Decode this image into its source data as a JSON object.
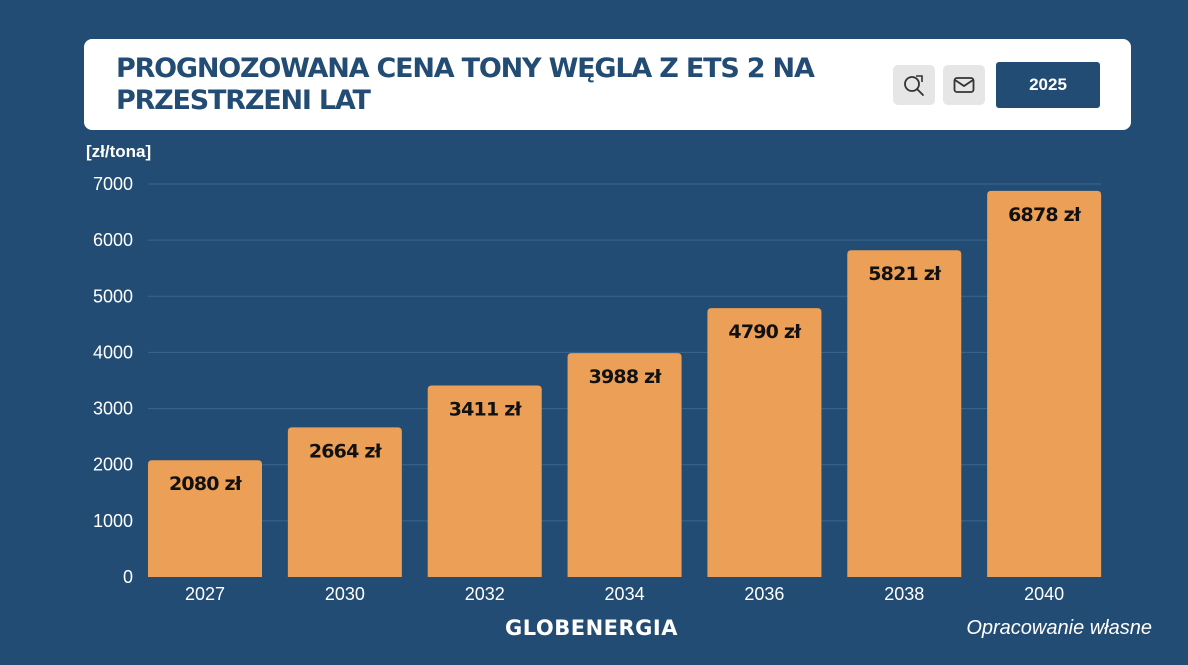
{
  "header": {
    "title": "PROGNOZOWANA CENA TONY WĘGLA Z ETS 2 NA PRZESTRZENI LAT",
    "year_button": "2025",
    "icons": [
      "zoom-icon",
      "mail-icon"
    ]
  },
  "unit_label": "[zł/tona]",
  "brand": "GLOBENERGIA",
  "source": "Opracowanie własne",
  "colors": {
    "background": "#224c73",
    "bar": "#eb9f57",
    "card": "#ffffff",
    "grid": "#3a6690"
  },
  "chart_data": {
    "type": "bar",
    "categories": [
      "2027",
      "2030",
      "2032",
      "2034",
      "2036",
      "2038",
      "2040"
    ],
    "values": [
      2080,
      2664,
      3411,
      3988,
      4790,
      5821,
      6878
    ],
    "value_labels": [
      "2080 zł",
      "2664 zł",
      "3411 zł",
      "3988 zł",
      "4790 zł",
      "5821 zł",
      "6878 zł"
    ],
    "ylabel": "[zł/tona]",
    "ylim": [
      0,
      7000
    ],
    "yticks": [
      0,
      1000,
      2000,
      3000,
      4000,
      5000,
      6000,
      7000
    ],
    "grid": true,
    "legend": "none"
  }
}
